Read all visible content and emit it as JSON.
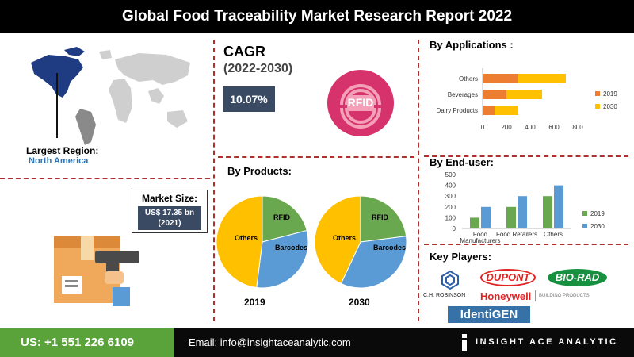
{
  "title": "Global Food Traceability Market Research Report 2022",
  "cagr": {
    "label": "CAGR",
    "period": "(2022-2030)",
    "value": "10.07%"
  },
  "rfid_badge": "RFID",
  "region": {
    "label": "Largest Region:",
    "value": "North America"
  },
  "market_size": {
    "label": "Market Size:",
    "value": "US$ 17.35 bn",
    "year": "(2021)"
  },
  "products": {
    "heading": "By  Products:",
    "pies": [
      {
        "year": "2019",
        "slices": [
          {
            "label": "RFID",
            "value": 21,
            "color": "#6aa84f"
          },
          {
            "label": "Barcodes",
            "value": 31,
            "color": "#5b9bd5"
          },
          {
            "label": "Others",
            "value": 48,
            "color": "#ffc000"
          }
        ]
      },
      {
        "year": "2030",
        "slices": [
          {
            "label": "RFID",
            "value": 23,
            "color": "#6aa84f"
          },
          {
            "label": "Barcodes",
            "value": 34,
            "color": "#5b9bd5"
          },
          {
            "label": "Others",
            "value": 43,
            "color": "#ffc000"
          }
        ]
      }
    ]
  },
  "chart_data": [
    {
      "type": "bar",
      "orientation": "horizontal",
      "stacked": true,
      "title": "By Applications :",
      "categories": [
        "Others",
        "Beverages",
        "Dairy Products"
      ],
      "series": [
        {
          "name": "2019",
          "values": [
            300,
            200,
            100
          ],
          "color": "#ed7d31"
        },
        {
          "name": "2030",
          "values": [
            400,
            300,
            200
          ],
          "color": "#ffc000"
        }
      ],
      "xlim": [
        0,
        800
      ],
      "xticks": [
        "0",
        "200",
        "400",
        "600",
        "800"
      ],
      "legend": "right"
    },
    {
      "type": "bar",
      "title": "By End-user:",
      "categories": [
        "Food Manufacturers",
        "Food Retailers",
        "Others"
      ],
      "series": [
        {
          "name": "2019",
          "values": [
            100,
            200,
            300
          ],
          "color": "#6aa84f"
        },
        {
          "name": "2030",
          "values": [
            200,
            300,
            400
          ],
          "color": "#5b9bd5"
        }
      ],
      "ylim": [
        0,
        500
      ],
      "yticks": [
        "0",
        "100",
        "200",
        "300",
        "400",
        "500"
      ],
      "legend": "right"
    },
    {
      "type": "pie",
      "title": "2019",
      "categories": [
        "RFID",
        "Barcodes",
        "Others"
      ],
      "values": [
        21,
        31,
        48
      ]
    },
    {
      "type": "pie",
      "title": "2030",
      "categories": [
        "RFID",
        "Barcodes",
        "Others"
      ],
      "values": [
        23,
        34,
        43
      ]
    }
  ],
  "key_players": {
    "heading": "Key Players:",
    "companies": [
      "C.H. ROBINSON",
      "DUPONT",
      "BIO-RAD",
      "Honeywell",
      "BUILDING PRODUCTS",
      "IdentiGEN"
    ]
  },
  "footer": {
    "phone": "US: +1 551 226 6109",
    "email": "Email: info@insightaceanalytic.com",
    "brand": "INSIGHT ACE ANALYTIC"
  }
}
